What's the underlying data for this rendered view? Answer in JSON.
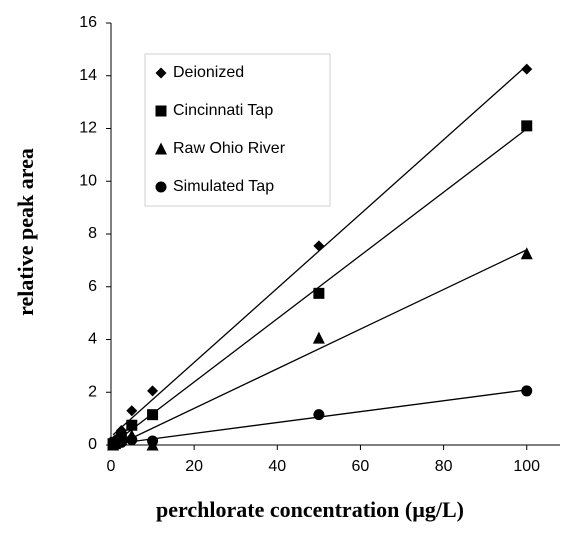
{
  "chart_data": {
    "type": "scatter",
    "x_label": "perchlorate concentration (µg/L)",
    "y_label": "relative peak area",
    "xlim": [
      0,
      108
    ],
    "xticks": [
      0,
      20,
      40,
      60,
      80,
      100
    ],
    "ylim": [
      0,
      16
    ],
    "yticks": [
      0,
      2,
      4,
      6,
      8,
      10,
      12,
      14,
      16
    ],
    "trendlines": true,
    "legend": "upper-left",
    "series": [
      {
        "name": "Deionized",
        "color": "#000000",
        "marker": "diamond",
        "x": [
          0.5,
          1,
          2.5,
          5,
          10,
          50,
          100
        ],
        "values": [
          0.1,
          0.2,
          0.55,
          1.3,
          2.05,
          7.55,
          14.25
        ]
      },
      {
        "name": "Cincinnati Tap",
        "color": "#000000",
        "marker": "square",
        "x": [
          0.5,
          1,
          2.5,
          5,
          10,
          50,
          100
        ],
        "values": [
          0.05,
          0.1,
          0.3,
          0.75,
          1.15,
          5.75,
          12.1
        ]
      },
      {
        "name": "Raw Ohio River",
        "color": "#000000",
        "marker": "triangle",
        "x": [
          0.5,
          1,
          2.5,
          5,
          10,
          50,
          100
        ],
        "values": [
          0,
          0.05,
          0.2,
          0.35,
          0,
          4.05,
          7.25
        ]
      },
      {
        "name": "Simulated Tap",
        "color": "#000000",
        "marker": "circle",
        "x": [
          0.5,
          1,
          2.5,
          5,
          10,
          50,
          100
        ],
        "values": [
          0,
          0.02,
          0.1,
          0.2,
          0.15,
          1.15,
          2.05
        ]
      }
    ]
  }
}
